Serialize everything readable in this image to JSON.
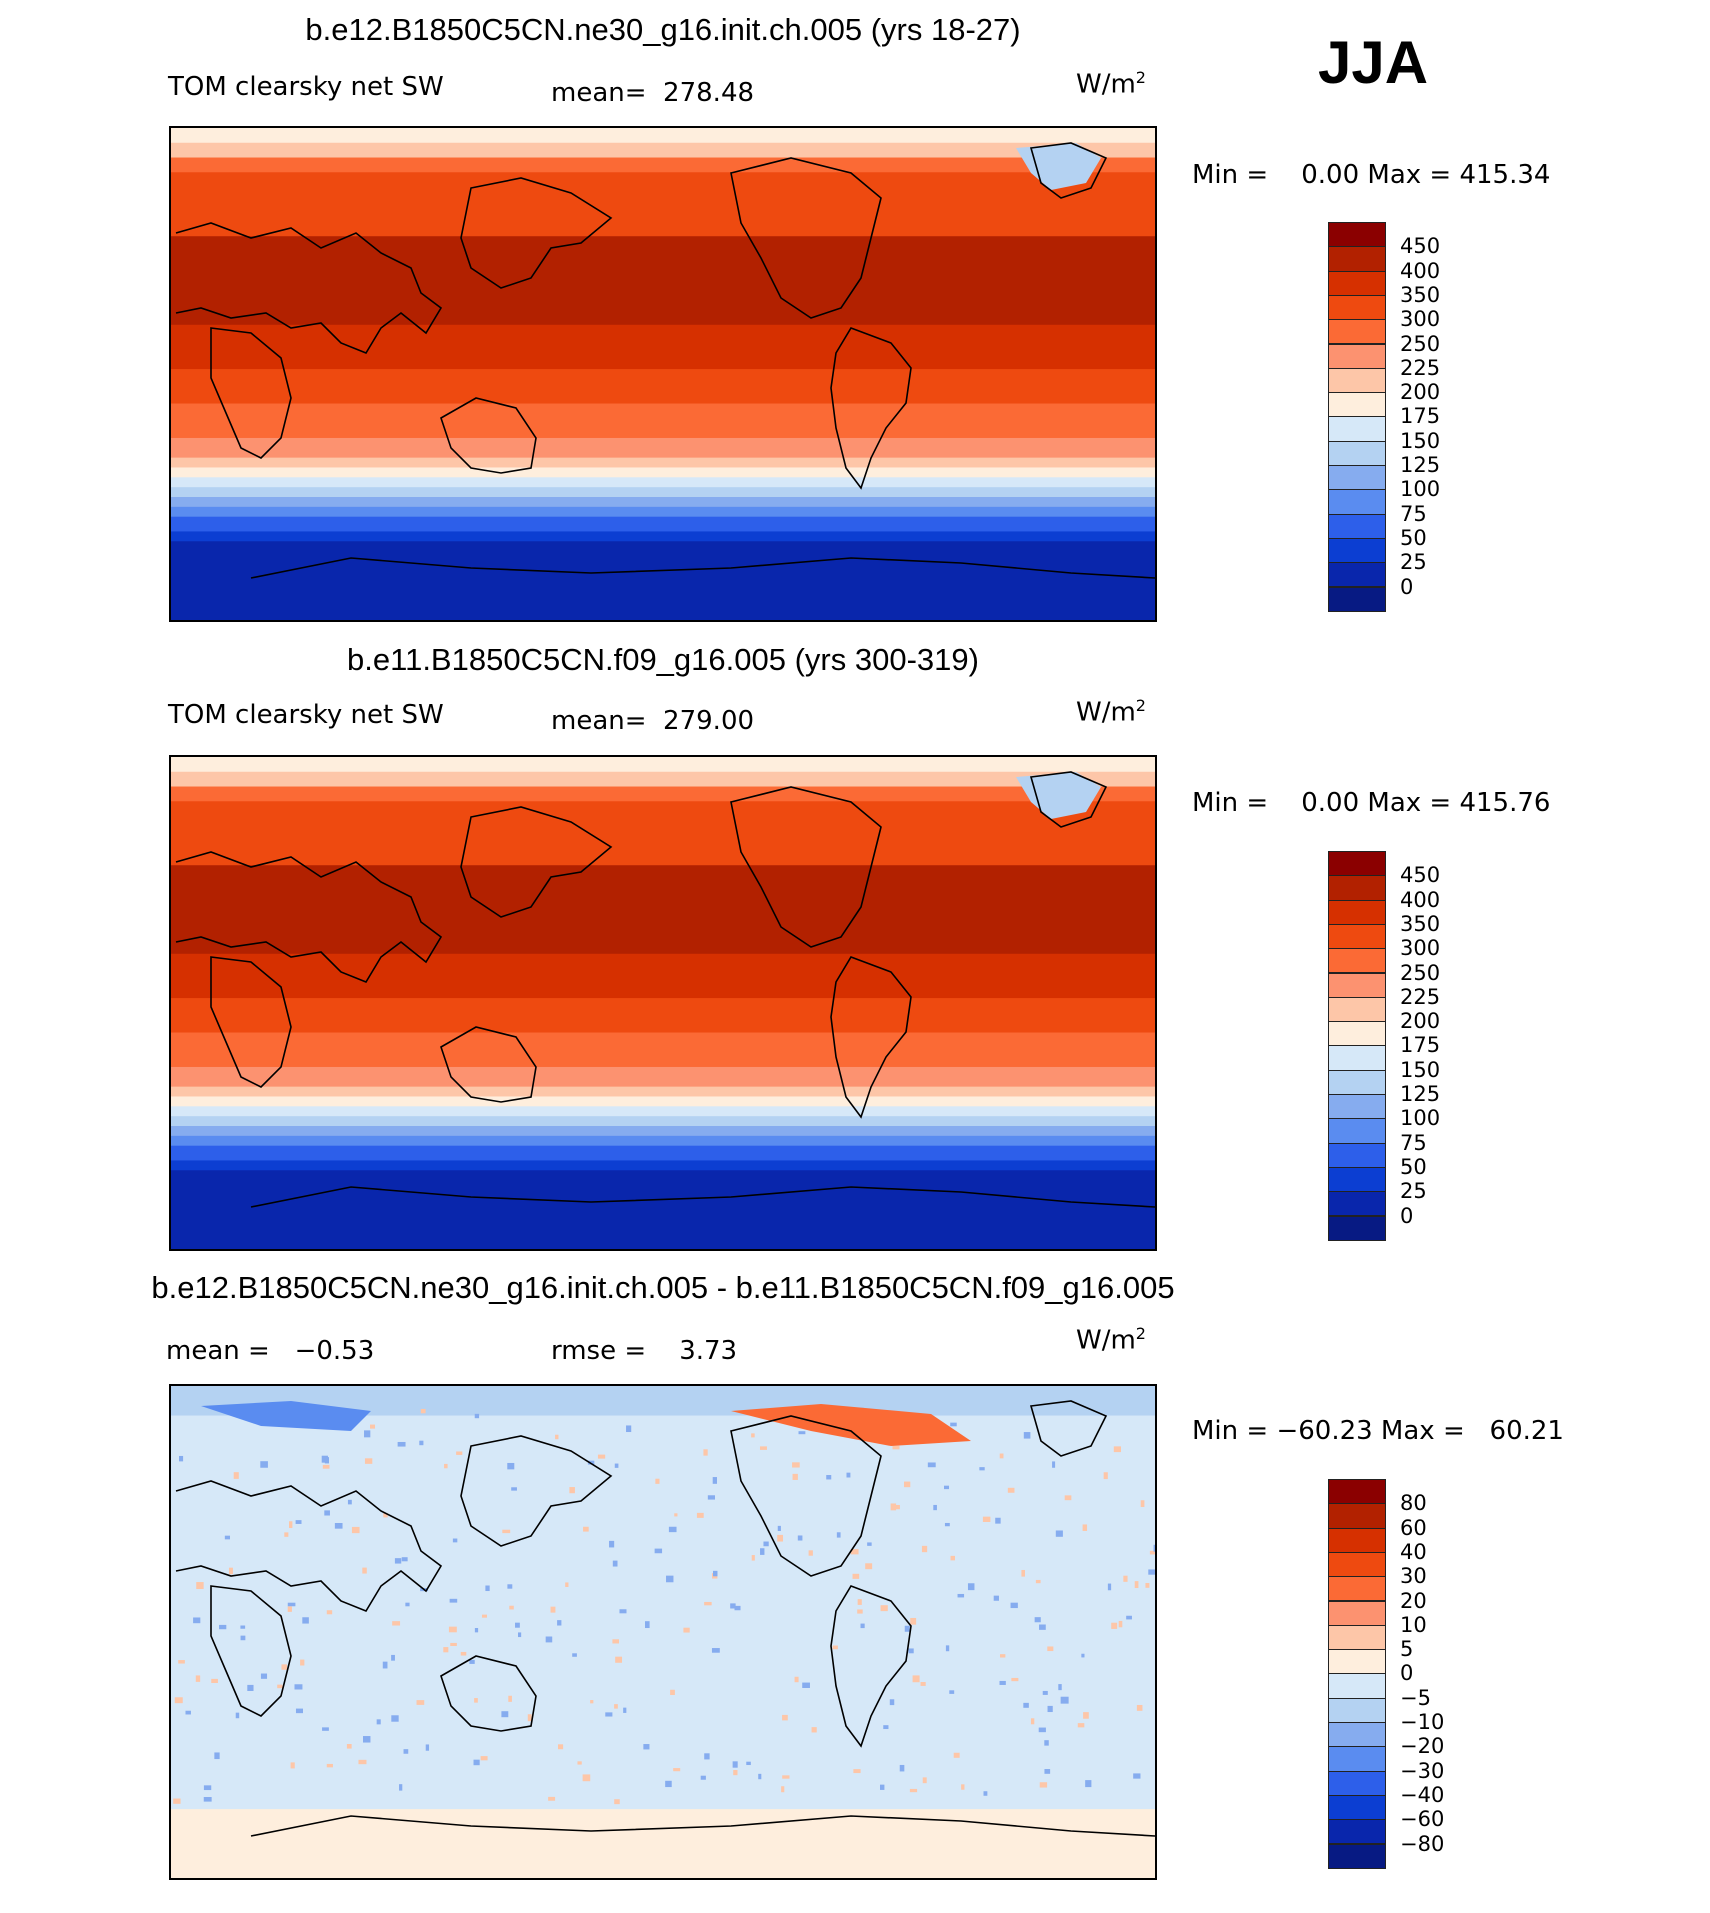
{
  "season": "JJA",
  "panels": [
    {
      "title": "b.e12.B1850C5CN.ne30_g16.init.ch.005 (yrs 18-27)",
      "variable": "TOM clearsky net SW",
      "stat_text": "mean=  278.48",
      "units": "W/m",
      "units_sup": "2",
      "minmax": "Min =    0.00 Max = 415.34",
      "colorbar": {
        "labels": [
          "450",
          "400",
          "350",
          "300",
          "250",
          "225",
          "200",
          "175",
          "150",
          "125",
          "100",
          "75",
          "50",
          "25",
          "0"
        ],
        "colors": [
          "#8b0000",
          "#b22100",
          "#d63000",
          "#ee4a10",
          "#fb6a35",
          "#fc9270",
          "#fdc6a8",
          "#feeedd",
          "#d6e8f8",
          "#b4d2f2",
          "#86acef",
          "#5a8cf0",
          "#2d5fea",
          "#0c3ed2",
          "#0926ac",
          "#071a83"
        ]
      },
      "field_type": "mean"
    },
    {
      "title": "b.e11.B1850C5CN.f09_g16.005 (yrs 300-319)",
      "variable": "TOM clearsky net SW",
      "stat_text": "mean=  279.00",
      "units": "W/m",
      "units_sup": "2",
      "minmax": "Min =    0.00 Max = 415.76",
      "colorbar": {
        "labels": [
          "450",
          "400",
          "350",
          "300",
          "250",
          "225",
          "200",
          "175",
          "150",
          "125",
          "100",
          "75",
          "50",
          "25",
          "0"
        ],
        "colors": [
          "#8b0000",
          "#b22100",
          "#d63000",
          "#ee4a10",
          "#fb6a35",
          "#fc9270",
          "#fdc6a8",
          "#feeedd",
          "#d6e8f8",
          "#b4d2f2",
          "#86acef",
          "#5a8cf0",
          "#2d5fea",
          "#0c3ed2",
          "#0926ac",
          "#071a83"
        ]
      },
      "field_type": "mean"
    },
    {
      "title": "b.e12.B1850C5CN.ne30_g16.init.ch.005 - b.e11.B1850C5CN.f09_g16.005",
      "variable": "mean =   −0.53",
      "stat_text": "rmse =    3.73",
      "units": "W/m",
      "units_sup": "2",
      "minmax": "Min = −60.23 Max =   60.21",
      "colorbar": {
        "labels": [
          "80",
          "60",
          "40",
          "30",
          "20",
          "10",
          "5",
          "0",
          "−5",
          "−10",
          "−20",
          "−30",
          "−40",
          "−60",
          "−80"
        ],
        "colors": [
          "#8b0000",
          "#b22100",
          "#d63000",
          "#ee4a10",
          "#fb6a35",
          "#fc9270",
          "#fdc6a8",
          "#feeedd",
          "#d6e8f8",
          "#b4d2f2",
          "#86acef",
          "#5a8cf0",
          "#2d5fea",
          "#0c3ed2",
          "#0926ac",
          "#071a83"
        ]
      },
      "field_type": "diff"
    }
  ]
}
